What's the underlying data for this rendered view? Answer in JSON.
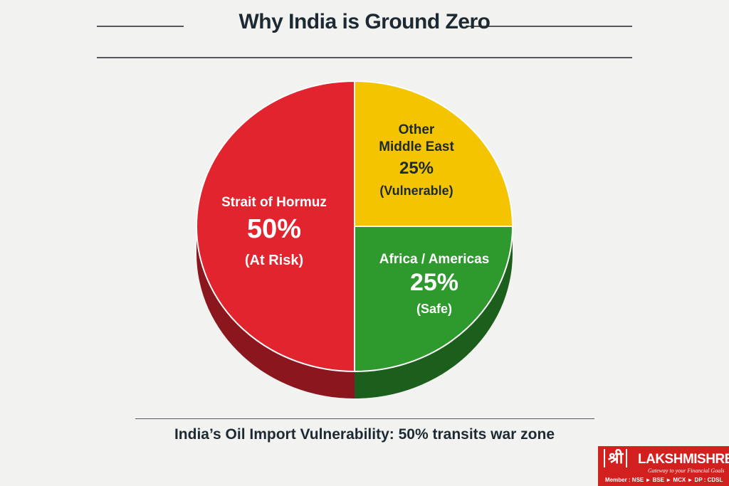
{
  "title": "Why India is Ground Zero",
  "caption": "India’s Oil Import Vulnerability: 50% transits war zone",
  "logo": {
    "mark": "श्री",
    "name": "LAKSHMISHREE",
    "tagline": "Gateway to your Financial Goals",
    "member": "Member : NSE ► BSE ► MCX ► DP : CDSL"
  },
  "chart_data": {
    "type": "pie",
    "style": "3d",
    "slices": [
      {
        "label": "Other Middle East",
        "value": 25,
        "value_label": "25%",
        "note": "(Vulnerable)",
        "color": "#f5c400"
      },
      {
        "label": "Africa / Americas",
        "value": 25,
        "value_label": "25%",
        "note": "(Safe)",
        "color": "#2e9a2e"
      },
      {
        "label": "Strait of Hormuz",
        "value": 50,
        "value_label": "50%",
        "note": "(At Risk)",
        "color": "#e2242f"
      }
    ]
  }
}
